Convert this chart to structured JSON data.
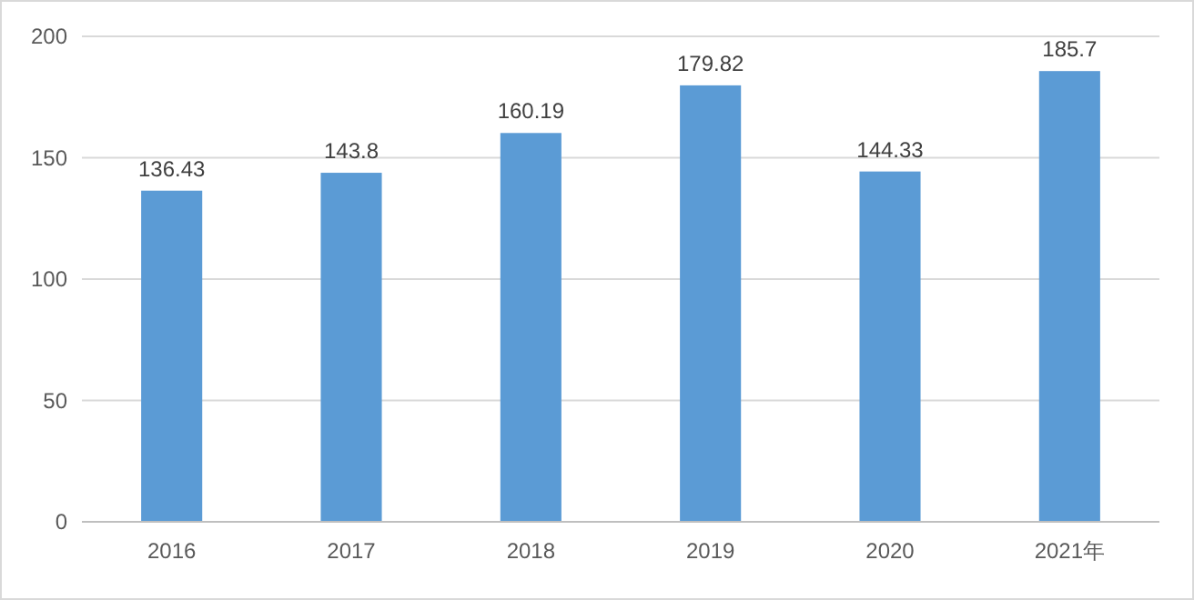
{
  "chart_data": {
    "type": "bar",
    "categories": [
      "2016",
      "2017",
      "2018",
      "2019",
      "2020",
      "2021年"
    ],
    "values": [
      136.43,
      143.8,
      160.19,
      179.82,
      144.33,
      185.7
    ],
    "color": "#5b9bd5",
    "ylim": [
      0,
      200
    ],
    "yticks": [
      0,
      50,
      100,
      150,
      200
    ],
    "grid": "y",
    "data_labels": true
  }
}
